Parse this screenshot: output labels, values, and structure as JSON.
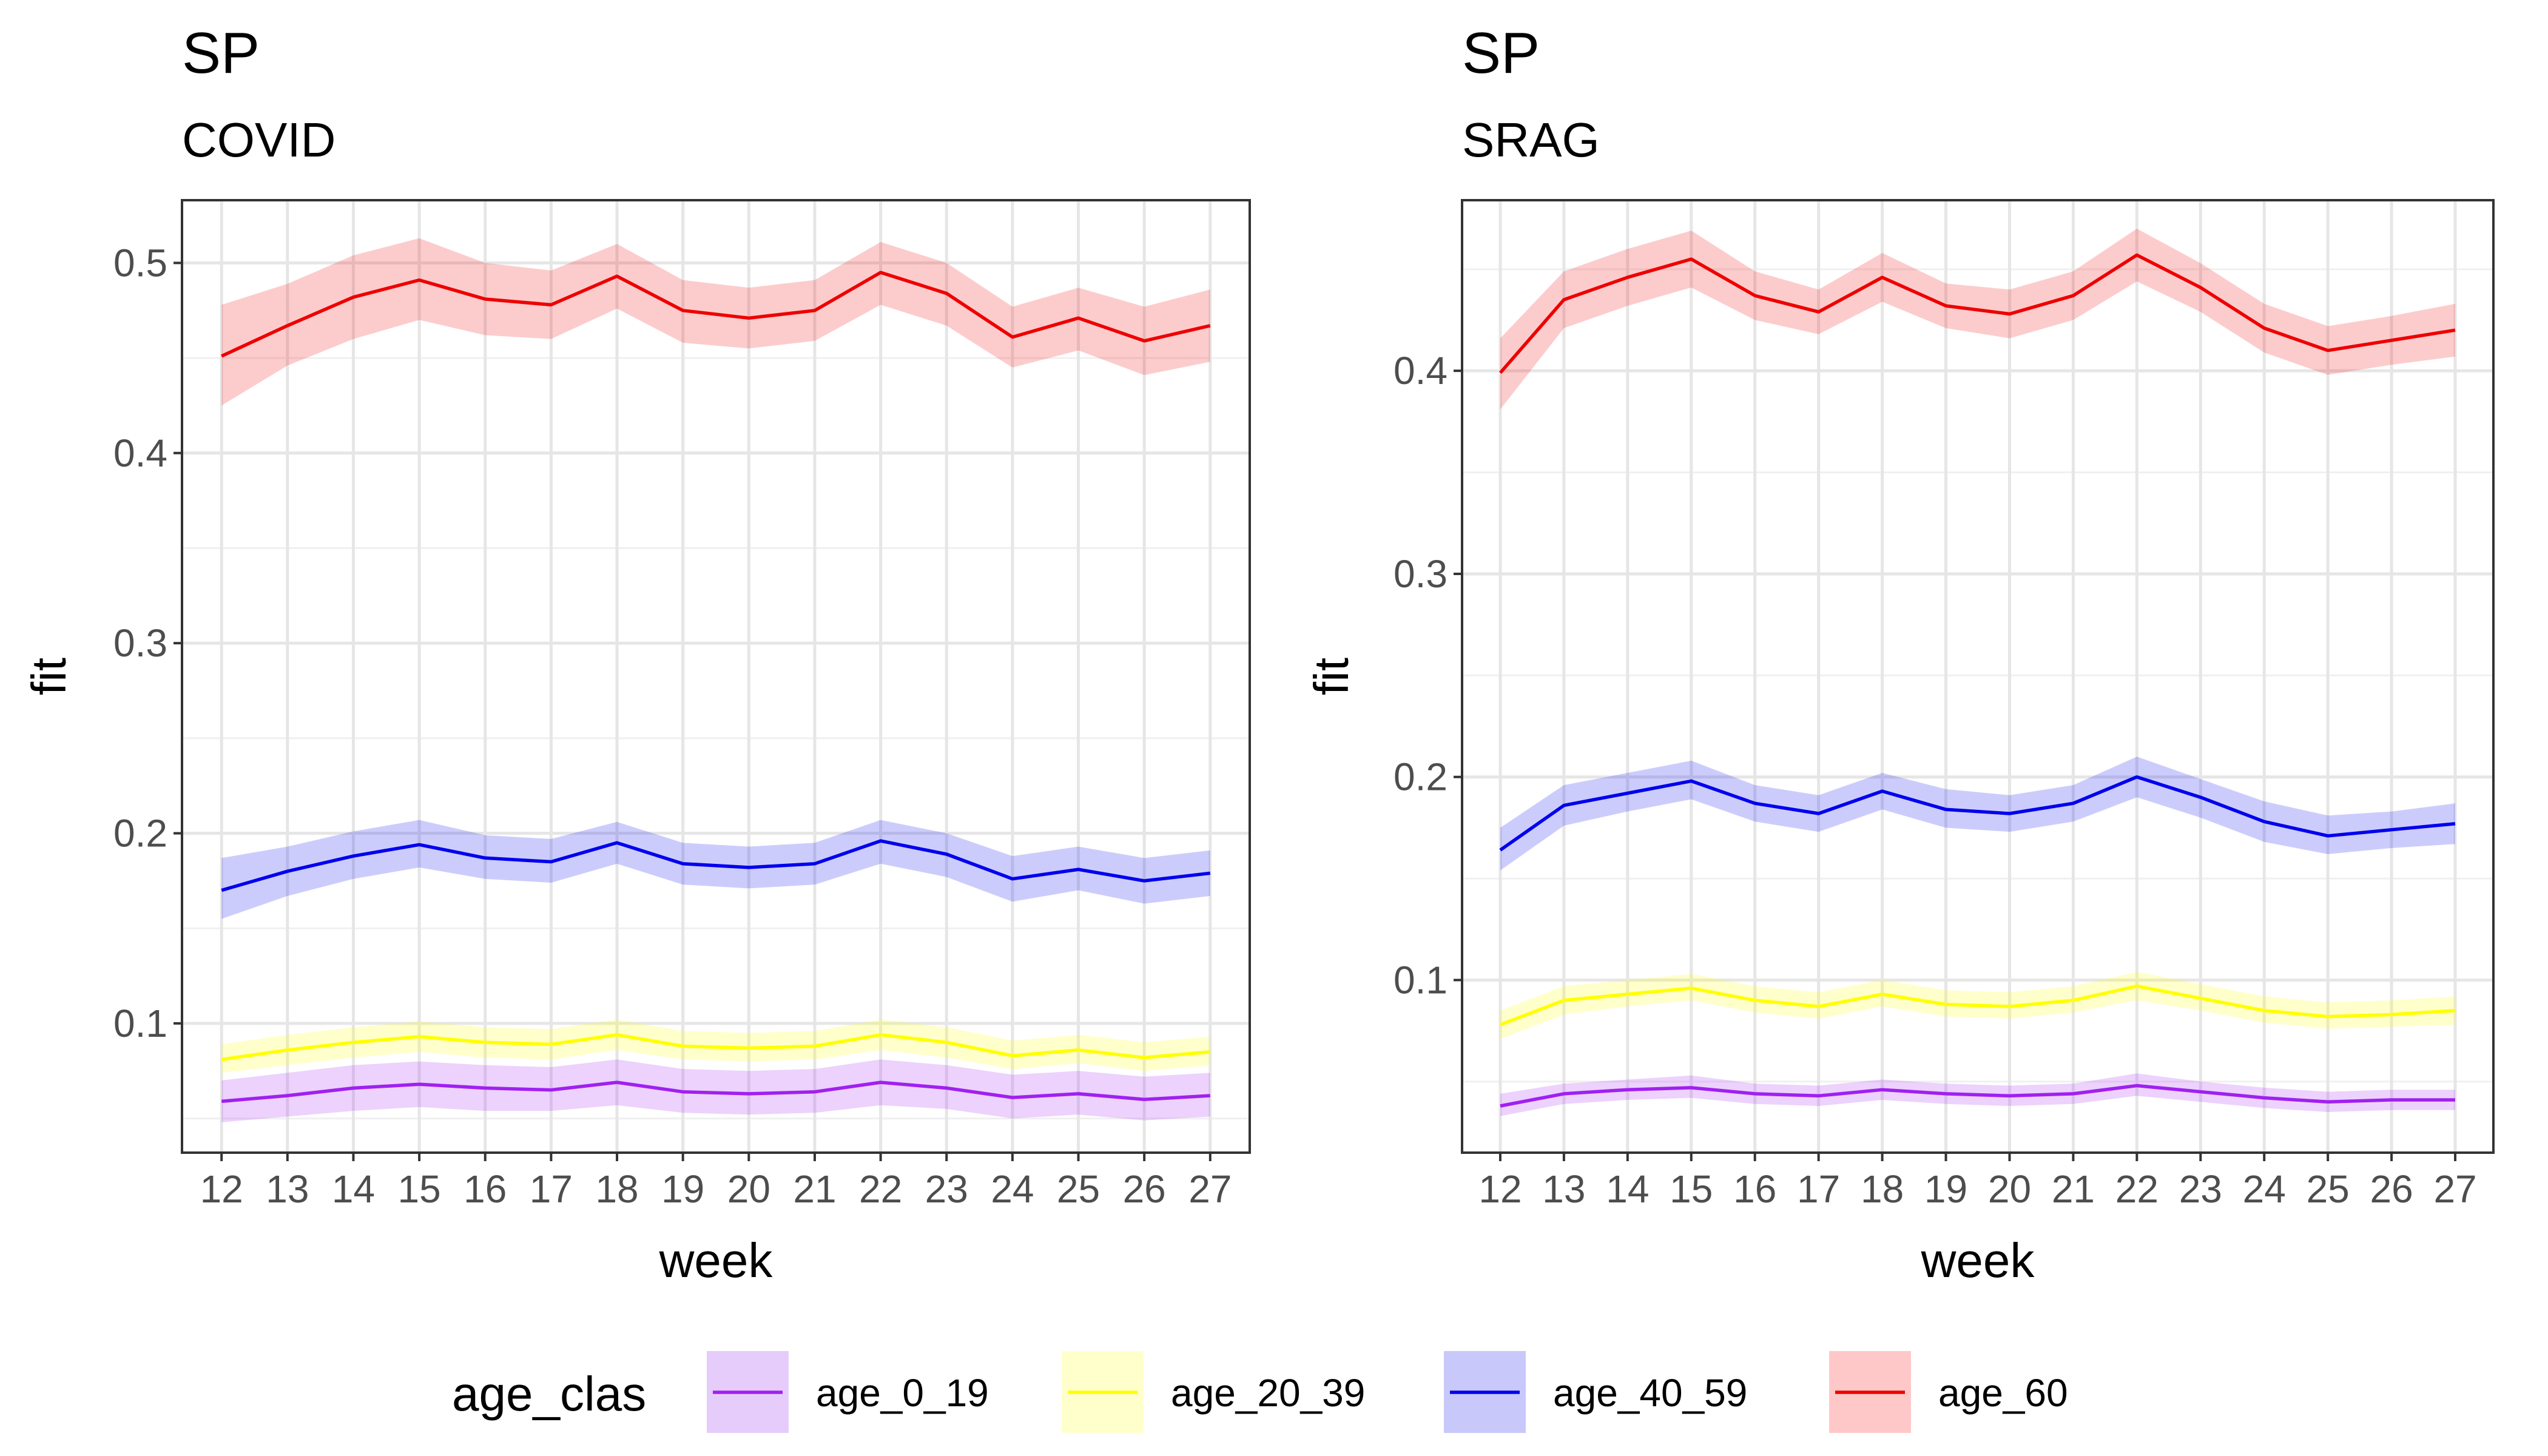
{
  "chart_data": [
    {
      "type": "line",
      "title": "SP",
      "subtitle": "COVID",
      "xlabel": "week",
      "ylabel": "fit",
      "ylim": [
        0.032,
        0.533
      ],
      "yticks": [
        0.1,
        0.2,
        0.3,
        0.4,
        0.5
      ],
      "ytick_labels": [
        "0.1",
        "0.2",
        "0.3",
        "0.4",
        "0.5"
      ],
      "x": [
        12,
        13,
        14,
        15,
        16,
        17,
        18,
        19,
        20,
        21,
        22,
        23,
        24,
        25,
        26,
        27
      ],
      "grid": true,
      "series": [
        {
          "name": "age_0_19",
          "color": "#A020F0",
          "fill": "#E6CCFA",
          "values": [
            0.059,
            0.062,
            0.066,
            0.068,
            0.066,
            0.065,
            0.069,
            0.064,
            0.063,
            0.064,
            0.069,
            0.066,
            0.061,
            0.063,
            0.06,
            0.062
          ],
          "lower": [
            0.048,
            0.051,
            0.054,
            0.056,
            0.054,
            0.054,
            0.057,
            0.053,
            0.052,
            0.053,
            0.057,
            0.055,
            0.05,
            0.052,
            0.049,
            0.051
          ],
          "upper": [
            0.07,
            0.074,
            0.078,
            0.08,
            0.078,
            0.077,
            0.081,
            0.076,
            0.075,
            0.076,
            0.081,
            0.078,
            0.073,
            0.075,
            0.072,
            0.074
          ]
        },
        {
          "name": "age_20_39",
          "color": "#FFFF00",
          "fill": "#FFFFCC",
          "values": [
            0.081,
            0.086,
            0.09,
            0.093,
            0.09,
            0.089,
            0.094,
            0.088,
            0.087,
            0.088,
            0.094,
            0.09,
            0.083,
            0.086,
            0.082,
            0.085
          ],
          "lower": [
            0.074,
            0.078,
            0.082,
            0.085,
            0.082,
            0.081,
            0.086,
            0.081,
            0.08,
            0.081,
            0.086,
            0.082,
            0.076,
            0.079,
            0.075,
            0.078
          ],
          "upper": [
            0.089,
            0.094,
            0.098,
            0.101,
            0.098,
            0.097,
            0.102,
            0.096,
            0.095,
            0.096,
            0.102,
            0.098,
            0.091,
            0.094,
            0.09,
            0.093
          ]
        },
        {
          "name": "age_40_59",
          "color": "#0000EE",
          "fill": "#C8C8FA",
          "values": [
            0.17,
            0.18,
            0.188,
            0.194,
            0.187,
            0.185,
            0.195,
            0.184,
            0.182,
            0.184,
            0.196,
            0.189,
            0.176,
            0.181,
            0.175,
            0.179
          ],
          "lower": [
            0.155,
            0.167,
            0.176,
            0.182,
            0.176,
            0.174,
            0.184,
            0.173,
            0.171,
            0.173,
            0.184,
            0.177,
            0.164,
            0.17,
            0.163,
            0.167
          ],
          "upper": [
            0.187,
            0.193,
            0.201,
            0.207,
            0.199,
            0.197,
            0.206,
            0.195,
            0.193,
            0.195,
            0.207,
            0.2,
            0.188,
            0.193,
            0.187,
            0.191
          ]
        },
        {
          "name": "age_60",
          "color": "#EE0000",
          "fill": "#FFC8C8",
          "values": [
            0.451,
            0.467,
            0.482,
            0.491,
            0.481,
            0.478,
            0.493,
            0.475,
            0.471,
            0.475,
            0.495,
            0.484,
            0.461,
            0.471,
            0.459,
            0.467
          ],
          "lower": [
            0.425,
            0.446,
            0.46,
            0.47,
            0.462,
            0.46,
            0.476,
            0.458,
            0.455,
            0.459,
            0.478,
            0.467,
            0.445,
            0.454,
            0.441,
            0.448
          ],
          "upper": [
            0.478,
            0.489,
            0.504,
            0.513,
            0.5,
            0.496,
            0.51,
            0.491,
            0.487,
            0.491,
            0.511,
            0.5,
            0.477,
            0.487,
            0.477,
            0.486
          ]
        }
      ]
    },
    {
      "type": "line",
      "title": "SP",
      "subtitle": "SRAG",
      "xlabel": "week",
      "ylabel": "fit",
      "ylim": [
        0.015,
        0.484
      ],
      "yticks": [
        0.1,
        0.2,
        0.3,
        0.4
      ],
      "ytick_labels": [
        "0.1",
        "0.2",
        "0.3",
        "0.4"
      ],
      "x": [
        12,
        13,
        14,
        15,
        16,
        17,
        18,
        19,
        20,
        21,
        22,
        23,
        24,
        25,
        26,
        27
      ],
      "grid": true,
      "series": [
        {
          "name": "age_0_19",
          "color": "#A020F0",
          "fill": "#E6CCFA",
          "values": [
            0.038,
            0.044,
            0.046,
            0.047,
            0.044,
            0.043,
            0.046,
            0.044,
            0.043,
            0.044,
            0.048,
            0.045,
            0.042,
            0.04,
            0.041,
            0.041
          ],
          "lower": [
            0.033,
            0.039,
            0.041,
            0.042,
            0.039,
            0.038,
            0.041,
            0.039,
            0.038,
            0.039,
            0.043,
            0.04,
            0.037,
            0.035,
            0.036,
            0.036
          ],
          "upper": [
            0.044,
            0.049,
            0.051,
            0.053,
            0.049,
            0.048,
            0.051,
            0.049,
            0.048,
            0.049,
            0.054,
            0.05,
            0.047,
            0.045,
            0.046,
            0.046
          ]
        },
        {
          "name": "age_20_39",
          "color": "#FFFF00",
          "fill": "#FFFFCC",
          "values": [
            0.078,
            0.09,
            0.093,
            0.096,
            0.09,
            0.087,
            0.093,
            0.088,
            0.087,
            0.09,
            0.097,
            0.091,
            0.085,
            0.082,
            0.083,
            0.085
          ],
          "lower": [
            0.071,
            0.083,
            0.087,
            0.09,
            0.084,
            0.081,
            0.087,
            0.082,
            0.081,
            0.084,
            0.09,
            0.085,
            0.079,
            0.076,
            0.077,
            0.078
          ],
          "upper": [
            0.085,
            0.097,
            0.1,
            0.103,
            0.097,
            0.094,
            0.1,
            0.095,
            0.094,
            0.097,
            0.104,
            0.098,
            0.092,
            0.089,
            0.09,
            0.092
          ]
        },
        {
          "name": "age_40_59",
          "color": "#0000EE",
          "fill": "#C8C8FA",
          "values": [
            0.164,
            0.186,
            0.192,
            0.198,
            0.187,
            0.182,
            0.193,
            0.184,
            0.182,
            0.187,
            0.2,
            0.19,
            0.178,
            0.171,
            0.174,
            0.177
          ],
          "lower": [
            0.154,
            0.176,
            0.183,
            0.189,
            0.178,
            0.173,
            0.184,
            0.175,
            0.173,
            0.178,
            0.19,
            0.18,
            0.168,
            0.162,
            0.165,
            0.167
          ],
          "upper": [
            0.175,
            0.196,
            0.202,
            0.208,
            0.196,
            0.191,
            0.202,
            0.194,
            0.191,
            0.196,
            0.21,
            0.199,
            0.188,
            0.181,
            0.183,
            0.187
          ]
        },
        {
          "name": "age_60",
          "color": "#EE0000",
          "fill": "#FFC8C8",
          "values": [
            0.399,
            0.435,
            0.446,
            0.455,
            0.437,
            0.429,
            0.446,
            0.432,
            0.428,
            0.437,
            0.457,
            0.441,
            0.421,
            0.41,
            0.415,
            0.42
          ],
          "lower": [
            0.381,
            0.421,
            0.432,
            0.441,
            0.425,
            0.418,
            0.434,
            0.421,
            0.416,
            0.425,
            0.444,
            0.429,
            0.409,
            0.398,
            0.403,
            0.407
          ],
          "upper": [
            0.416,
            0.449,
            0.46,
            0.469,
            0.449,
            0.44,
            0.458,
            0.443,
            0.44,
            0.449,
            0.47,
            0.453,
            0.433,
            0.422,
            0.427,
            0.433
          ]
        }
      ]
    }
  ],
  "legend": {
    "title": "age_clas",
    "position": "bottom",
    "items": [
      {
        "label": "age_0_19",
        "color": "#A020F0",
        "fill": "#E6CCFA"
      },
      {
        "label": "age_20_39",
        "color": "#FFFF00",
        "fill": "#FFFFCC"
      },
      {
        "label": "age_40_59",
        "color": "#0000EE",
        "fill": "#C8C8FA"
      },
      {
        "label": "age_60",
        "color": "#EE0000",
        "fill": "#FFC8C8"
      }
    ]
  }
}
